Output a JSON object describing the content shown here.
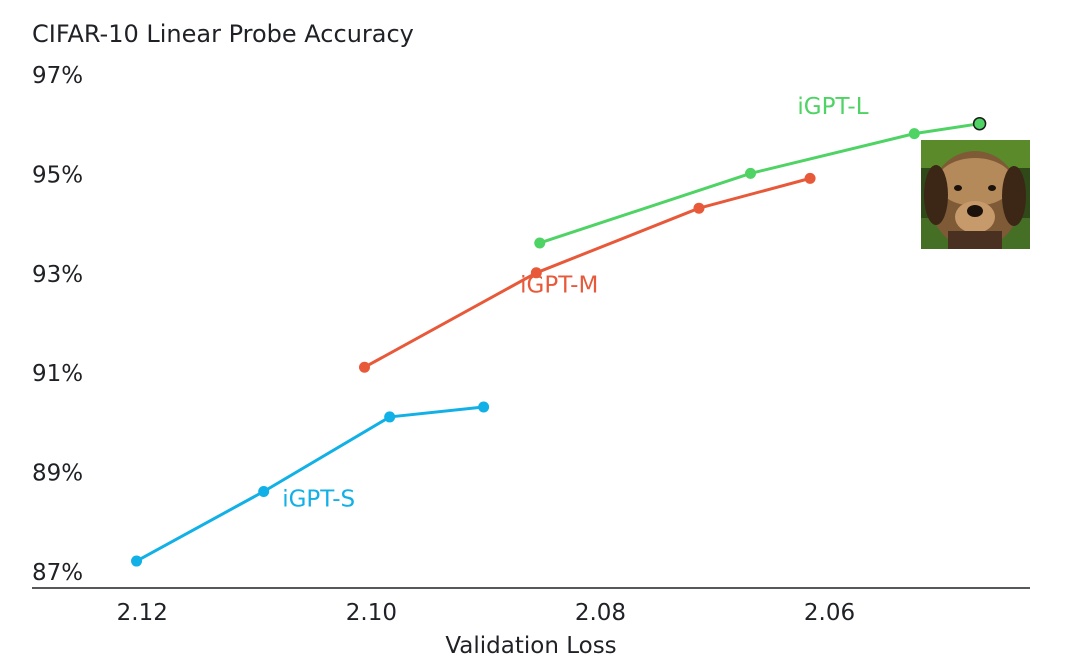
{
  "chart_data": {
    "type": "line",
    "title": "CIFAR-10 Linear Probe Accuracy",
    "xlabel": "Validation Loss",
    "ylabel": "",
    "xlim": [
      2.125,
      2.0425
    ],
    "ylim": [
      87,
      97
    ],
    "x_ticks": [
      "2.12",
      "2.10",
      "2.08",
      "2.06"
    ],
    "y_ticks": [
      "87%",
      "89%",
      "91%",
      "93%",
      "95%",
      "97%"
    ],
    "grid": false,
    "series": [
      {
        "name": "iGPT-S",
        "color": "#11b0e6",
        "x": [
          2.1205,
          2.1094,
          2.0984,
          2.0902
        ],
        "y": [
          87.2,
          88.6,
          90.1,
          90.3
        ]
      },
      {
        "name": "iGPT-M",
        "color": "#e8593a",
        "x": [
          2.1006,
          2.0856,
          2.0714,
          2.0617
        ],
        "y": [
          91.1,
          93.0,
          94.3,
          94.9
        ]
      },
      {
        "name": "iGPT-L",
        "color": "#4ed364",
        "x": [
          2.0853,
          2.0669,
          2.0526,
          2.0469
        ],
        "y": [
          93.6,
          95.0,
          95.8,
          96.0
        ]
      }
    ],
    "highlight_point": {
      "series": "iGPT-L",
      "x": 2.0469,
      "y": 96.0,
      "fill": "#4ed364",
      "stroke": "#1b1b1b"
    },
    "thumbnail": {
      "description": "dog-photo",
      "x": 2.0469
    }
  }
}
